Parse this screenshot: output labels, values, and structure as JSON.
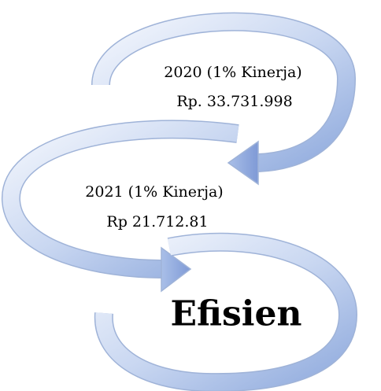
{
  "nodes": [
    {
      "label": "2020 (1% Kinerja)",
      "amount": "Rp. 33.731.998"
    },
    {
      "label": "2021 (1% Kinerja)",
      "amount": "Rp 21.712.81"
    },
    {
      "label": "Efisien"
    }
  ]
}
